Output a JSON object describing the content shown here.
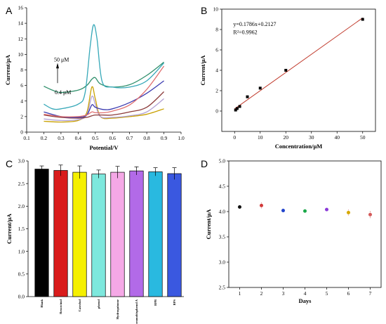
{
  "chart_data": [
    {
      "panel": "A",
      "type": "line",
      "xlabel": "Potential/V",
      "ylabel": "Current/μA",
      "xlim": [
        0.1,
        1.0
      ],
      "ylim": [
        0,
        16
      ],
      "xticks": [
        "0.1",
        "0.2",
        "0.3",
        "0.4",
        "0.5",
        "0.6",
        "0.7",
        "0.8",
        "0.9",
        "1.0"
      ],
      "yticks": [
        "0",
        "2",
        "4",
        "6",
        "8",
        "10",
        "12",
        "14",
        "16"
      ],
      "annotations": {
        "top": "50 μM",
        "bottom": "0.4 μM"
      },
      "series": [
        {
          "color": "#c8a000",
          "points": [
            [
              0.2,
              1.4
            ],
            [
              0.3,
              1.3
            ],
            [
              0.4,
              1.5
            ],
            [
              0.45,
              2.5
            ],
            [
              0.48,
              5.8
            ],
            [
              0.5,
              4.3
            ],
            [
              0.53,
              2.0
            ],
            [
              0.6,
              1.8
            ],
            [
              0.7,
              2.0
            ],
            [
              0.8,
              2.3
            ],
            [
              0.9,
              3.0
            ]
          ]
        },
        {
          "color": "#b3a3d6",
          "points": [
            [
              0.2,
              1.7
            ],
            [
              0.3,
              1.5
            ],
            [
              0.4,
              1.6
            ],
            [
              0.45,
              2.2
            ],
            [
              0.48,
              4.6
            ],
            [
              0.5,
              3.6
            ],
            [
              0.53,
              2.0
            ],
            [
              0.6,
              1.9
            ],
            [
              0.7,
              2.1
            ],
            [
              0.8,
              2.6
            ],
            [
              0.9,
              4.3
            ]
          ]
        },
        {
          "color": "#8b3a3a",
          "points": [
            [
              0.2,
              2.2
            ],
            [
              0.3,
              1.9
            ],
            [
              0.4,
              1.8
            ],
            [
              0.45,
              1.9
            ],
            [
              0.48,
              2.1
            ],
            [
              0.5,
              2.2
            ],
            [
              0.55,
              2.2
            ],
            [
              0.6,
              2.2
            ],
            [
              0.7,
              2.6
            ],
            [
              0.8,
              3.2
            ],
            [
              0.9,
              5.2
            ]
          ]
        },
        {
          "color": "#3b3bb0",
          "points": [
            [
              0.2,
              2.6
            ],
            [
              0.3,
              2.0
            ],
            [
              0.4,
              1.9
            ],
            [
              0.45,
              2.2
            ],
            [
              0.48,
              3.5
            ],
            [
              0.5,
              3.2
            ],
            [
              0.55,
              2.9
            ],
            [
              0.6,
              3.0
            ],
            [
              0.7,
              3.8
            ],
            [
              0.8,
              5.0
            ],
            [
              0.9,
              6.6
            ]
          ]
        },
        {
          "color": "#e07070",
          "points": [
            [
              0.2,
              2.3
            ],
            [
              0.3,
              2.0
            ],
            [
              0.4,
              2.0
            ],
            [
              0.45,
              2.2
            ],
            [
              0.48,
              2.6
            ],
            [
              0.5,
              2.5
            ],
            [
              0.55,
              2.5
            ],
            [
              0.6,
              2.7
            ],
            [
              0.7,
              3.5
            ],
            [
              0.8,
              5.5
            ],
            [
              0.9,
              8.5
            ]
          ]
        },
        {
          "color": "#2f8f6b",
          "points": [
            [
              0.2,
              5.9
            ],
            [
              0.25,
              5.4
            ],
            [
              0.3,
              5.1
            ],
            [
              0.4,
              5.4
            ],
            [
              0.45,
              6.0
            ],
            [
              0.48,
              6.8
            ],
            [
              0.5,
              7.0
            ],
            [
              0.53,
              6.2
            ],
            [
              0.6,
              5.8
            ],
            [
              0.7,
              6.1
            ],
            [
              0.8,
              7.3
            ],
            [
              0.9,
              9.0
            ]
          ]
        },
        {
          "color": "#36a8b8",
          "points": [
            [
              0.2,
              3.6
            ],
            [
              0.25,
              3.0
            ],
            [
              0.3,
              3.0
            ],
            [
              0.4,
              3.6
            ],
            [
              0.44,
              5.0
            ],
            [
              0.47,
              11.0
            ],
            [
              0.49,
              13.8
            ],
            [
              0.51,
              12.0
            ],
            [
              0.54,
              6.5
            ],
            [
              0.6,
              5.8
            ],
            [
              0.7,
              5.8
            ],
            [
              0.8,
              6.6
            ],
            [
              0.9,
              8.9
            ]
          ]
        }
      ]
    },
    {
      "panel": "B",
      "type": "scatter",
      "xlabel": "Concentration/μM",
      "ylabel": "Current/μA",
      "xlim": [
        -5,
        55
      ],
      "ylim": [
        -2,
        10
      ],
      "xticks": [
        "0",
        "10",
        "20",
        "30",
        "40",
        "50"
      ],
      "yticks": [
        "0",
        "2",
        "4",
        "6",
        "8",
        "10"
      ],
      "equation": "y=0.1786x+0.2127",
      "r2": "R²=0.9962",
      "points": [
        [
          0.4,
          0.1
        ],
        [
          1,
          0.25
        ],
        [
          2,
          0.45
        ],
        [
          5,
          1.4
        ],
        [
          10,
          2.25
        ],
        [
          20,
          4.0
        ],
        [
          50,
          9.0
        ]
      ],
      "fit": {
        "slope": 0.1786,
        "intercept": 0.2127,
        "x_range": [
          0,
          50
        ]
      }
    },
    {
      "panel": "C",
      "type": "bar",
      "xlabel": "",
      "ylabel": "Current/μA",
      "ylim": [
        0.0,
        3.0
      ],
      "yticks": [
        "0.0",
        "0.5",
        "1.0",
        "1.5",
        "2.0",
        "2.5",
        "3.0"
      ],
      "categories": [
        "Blank",
        "Resorcinol",
        "Catechol",
        "phenol",
        "Hydroquinone",
        "Tetrabromobisphenol A",
        "BPB",
        "BPS"
      ],
      "values": [
        2.82,
        2.79,
        2.75,
        2.71,
        2.75,
        2.78,
        2.76,
        2.72
      ],
      "errors": [
        0.07,
        0.12,
        0.14,
        0.09,
        0.13,
        0.09,
        0.09,
        0.13
      ],
      "colors": [
        "#000000",
        "#d91c1c",
        "#f5f000",
        "#7de8dd",
        "#f5a8e6",
        "#b26ae8",
        "#29b9e0",
        "#3a58e0"
      ]
    },
    {
      "panel": "D",
      "type": "scatter",
      "xlabel": "Days",
      "ylabel": "Current/μA",
      "xlim": [
        0.5,
        7.5
      ],
      "ylim": [
        2.5,
        5.0
      ],
      "xticks": [
        "1",
        "2",
        "3",
        "4",
        "5",
        "6",
        "7"
      ],
      "yticks": [
        "2.5",
        "3.0",
        "3.5",
        "4.0",
        "4.5",
        "5.0"
      ],
      "x": [
        1,
        2,
        3,
        4,
        5,
        6,
        7
      ],
      "values": [
        4.09,
        4.12,
        4.02,
        4.01,
        4.04,
        3.98,
        3.94
      ],
      "errors": [
        0.04,
        0.06,
        0.04,
        0.04,
        0.04,
        0.06,
        0.07
      ],
      "colors": [
        "#111111",
        "#d23a3a",
        "#2244cc",
        "#1aa84a",
        "#8a3ad8",
        "#d6a800",
        "#d45a5a"
      ]
    }
  ]
}
